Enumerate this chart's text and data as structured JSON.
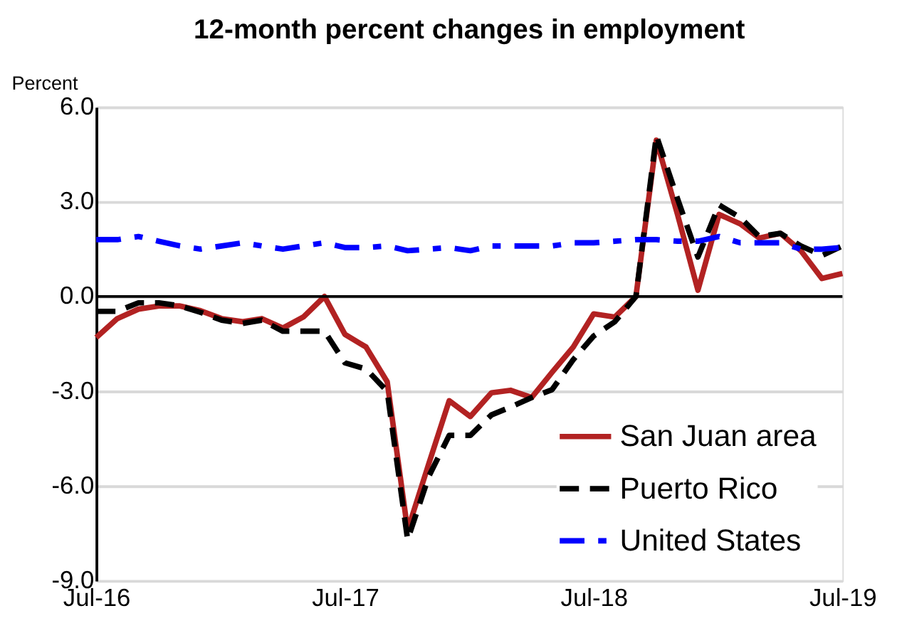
{
  "chart_data": {
    "type": "line",
    "title": "12-month percent changes in employment",
    "ylabel": "Percent",
    "x": [
      "2016-07",
      "2016-08",
      "2016-09",
      "2016-10",
      "2016-11",
      "2016-12",
      "2017-01",
      "2017-02",
      "2017-03",
      "2017-04",
      "2017-05",
      "2017-06",
      "2017-07",
      "2017-08",
      "2017-09",
      "2017-10",
      "2017-11",
      "2017-12",
      "2018-01",
      "2018-02",
      "2018-03",
      "2018-04",
      "2018-05",
      "2018-06",
      "2018-07",
      "2018-08",
      "2018-09",
      "2018-10",
      "2018-11",
      "2018-12",
      "2019-01",
      "2019-02",
      "2019-03",
      "2019-04",
      "2019-05",
      "2019-06",
      "2019-07"
    ],
    "series": [
      {
        "name": "San Juan area",
        "color": "#b22222",
        "line_style": "solid",
        "values": [
          -1.3,
          -0.7,
          -0.4,
          -0.3,
          -0.3,
          -0.45,
          -0.7,
          -0.8,
          -0.7,
          -1.0,
          -0.65,
          0.0,
          -1.2,
          -1.6,
          -2.7,
          -7.4,
          -5.3,
          -3.3,
          -3.8,
          -3.05,
          -2.97,
          -3.2,
          -2.4,
          -1.6,
          -0.55,
          -0.65,
          0.0,
          4.95,
          2.6,
          0.2,
          2.6,
          2.3,
          1.85,
          2.0,
          1.45,
          0.57,
          0.73
        ]
      },
      {
        "name": "Puerto Rico",
        "color": "#000000",
        "line_style": "dashed",
        "values": [
          -0.47,
          -0.47,
          -0.2,
          -0.2,
          -0.3,
          -0.5,
          -0.75,
          -0.85,
          -0.75,
          -1.1,
          -1.1,
          -1.1,
          -2.1,
          -2.3,
          -3.0,
          -7.7,
          -5.7,
          -4.4,
          -4.4,
          -3.75,
          -3.5,
          -3.2,
          -2.95,
          -2.0,
          -1.25,
          -0.8,
          0.0,
          5.1,
          3.1,
          1.25,
          2.9,
          2.5,
          1.9,
          2.0,
          1.6,
          1.3,
          1.6
        ]
      },
      {
        "name": "United States",
        "color": "#0000ff",
        "line_style": "dashed",
        "values": [
          1.8,
          1.8,
          1.9,
          1.75,
          1.6,
          1.5,
          1.6,
          1.7,
          1.6,
          1.5,
          1.6,
          1.7,
          1.55,
          1.55,
          1.6,
          1.45,
          1.5,
          1.55,
          1.45,
          1.6,
          1.6,
          1.6,
          1.6,
          1.7,
          1.7,
          1.75,
          1.8,
          1.8,
          1.75,
          1.75,
          1.9,
          1.7,
          1.7,
          1.7,
          1.5,
          1.5,
          1.55
        ]
      }
    ],
    "xlim": [
      "2016-07",
      "2019-07"
    ],
    "xticks": [
      {
        "value": "2016-07",
        "label": "Jul-16"
      },
      {
        "value": "2017-07",
        "label": "Jul-17"
      },
      {
        "value": "2018-07",
        "label": "Jul-18"
      },
      {
        "value": "2019-07",
        "label": "Jul-19"
      }
    ],
    "ylim": [
      -9,
      6
    ],
    "yticks": [
      {
        "value": -9,
        "label": "-9.0"
      },
      {
        "value": -6,
        "label": "-6.0"
      },
      {
        "value": -3,
        "label": "-3.0"
      },
      {
        "value": 0,
        "label": "0.0"
      },
      {
        "value": 3,
        "label": "3.0"
      },
      {
        "value": 6,
        "label": "6.0"
      }
    ],
    "grid": "y",
    "legend": "bottom right",
    "marker": "none"
  }
}
